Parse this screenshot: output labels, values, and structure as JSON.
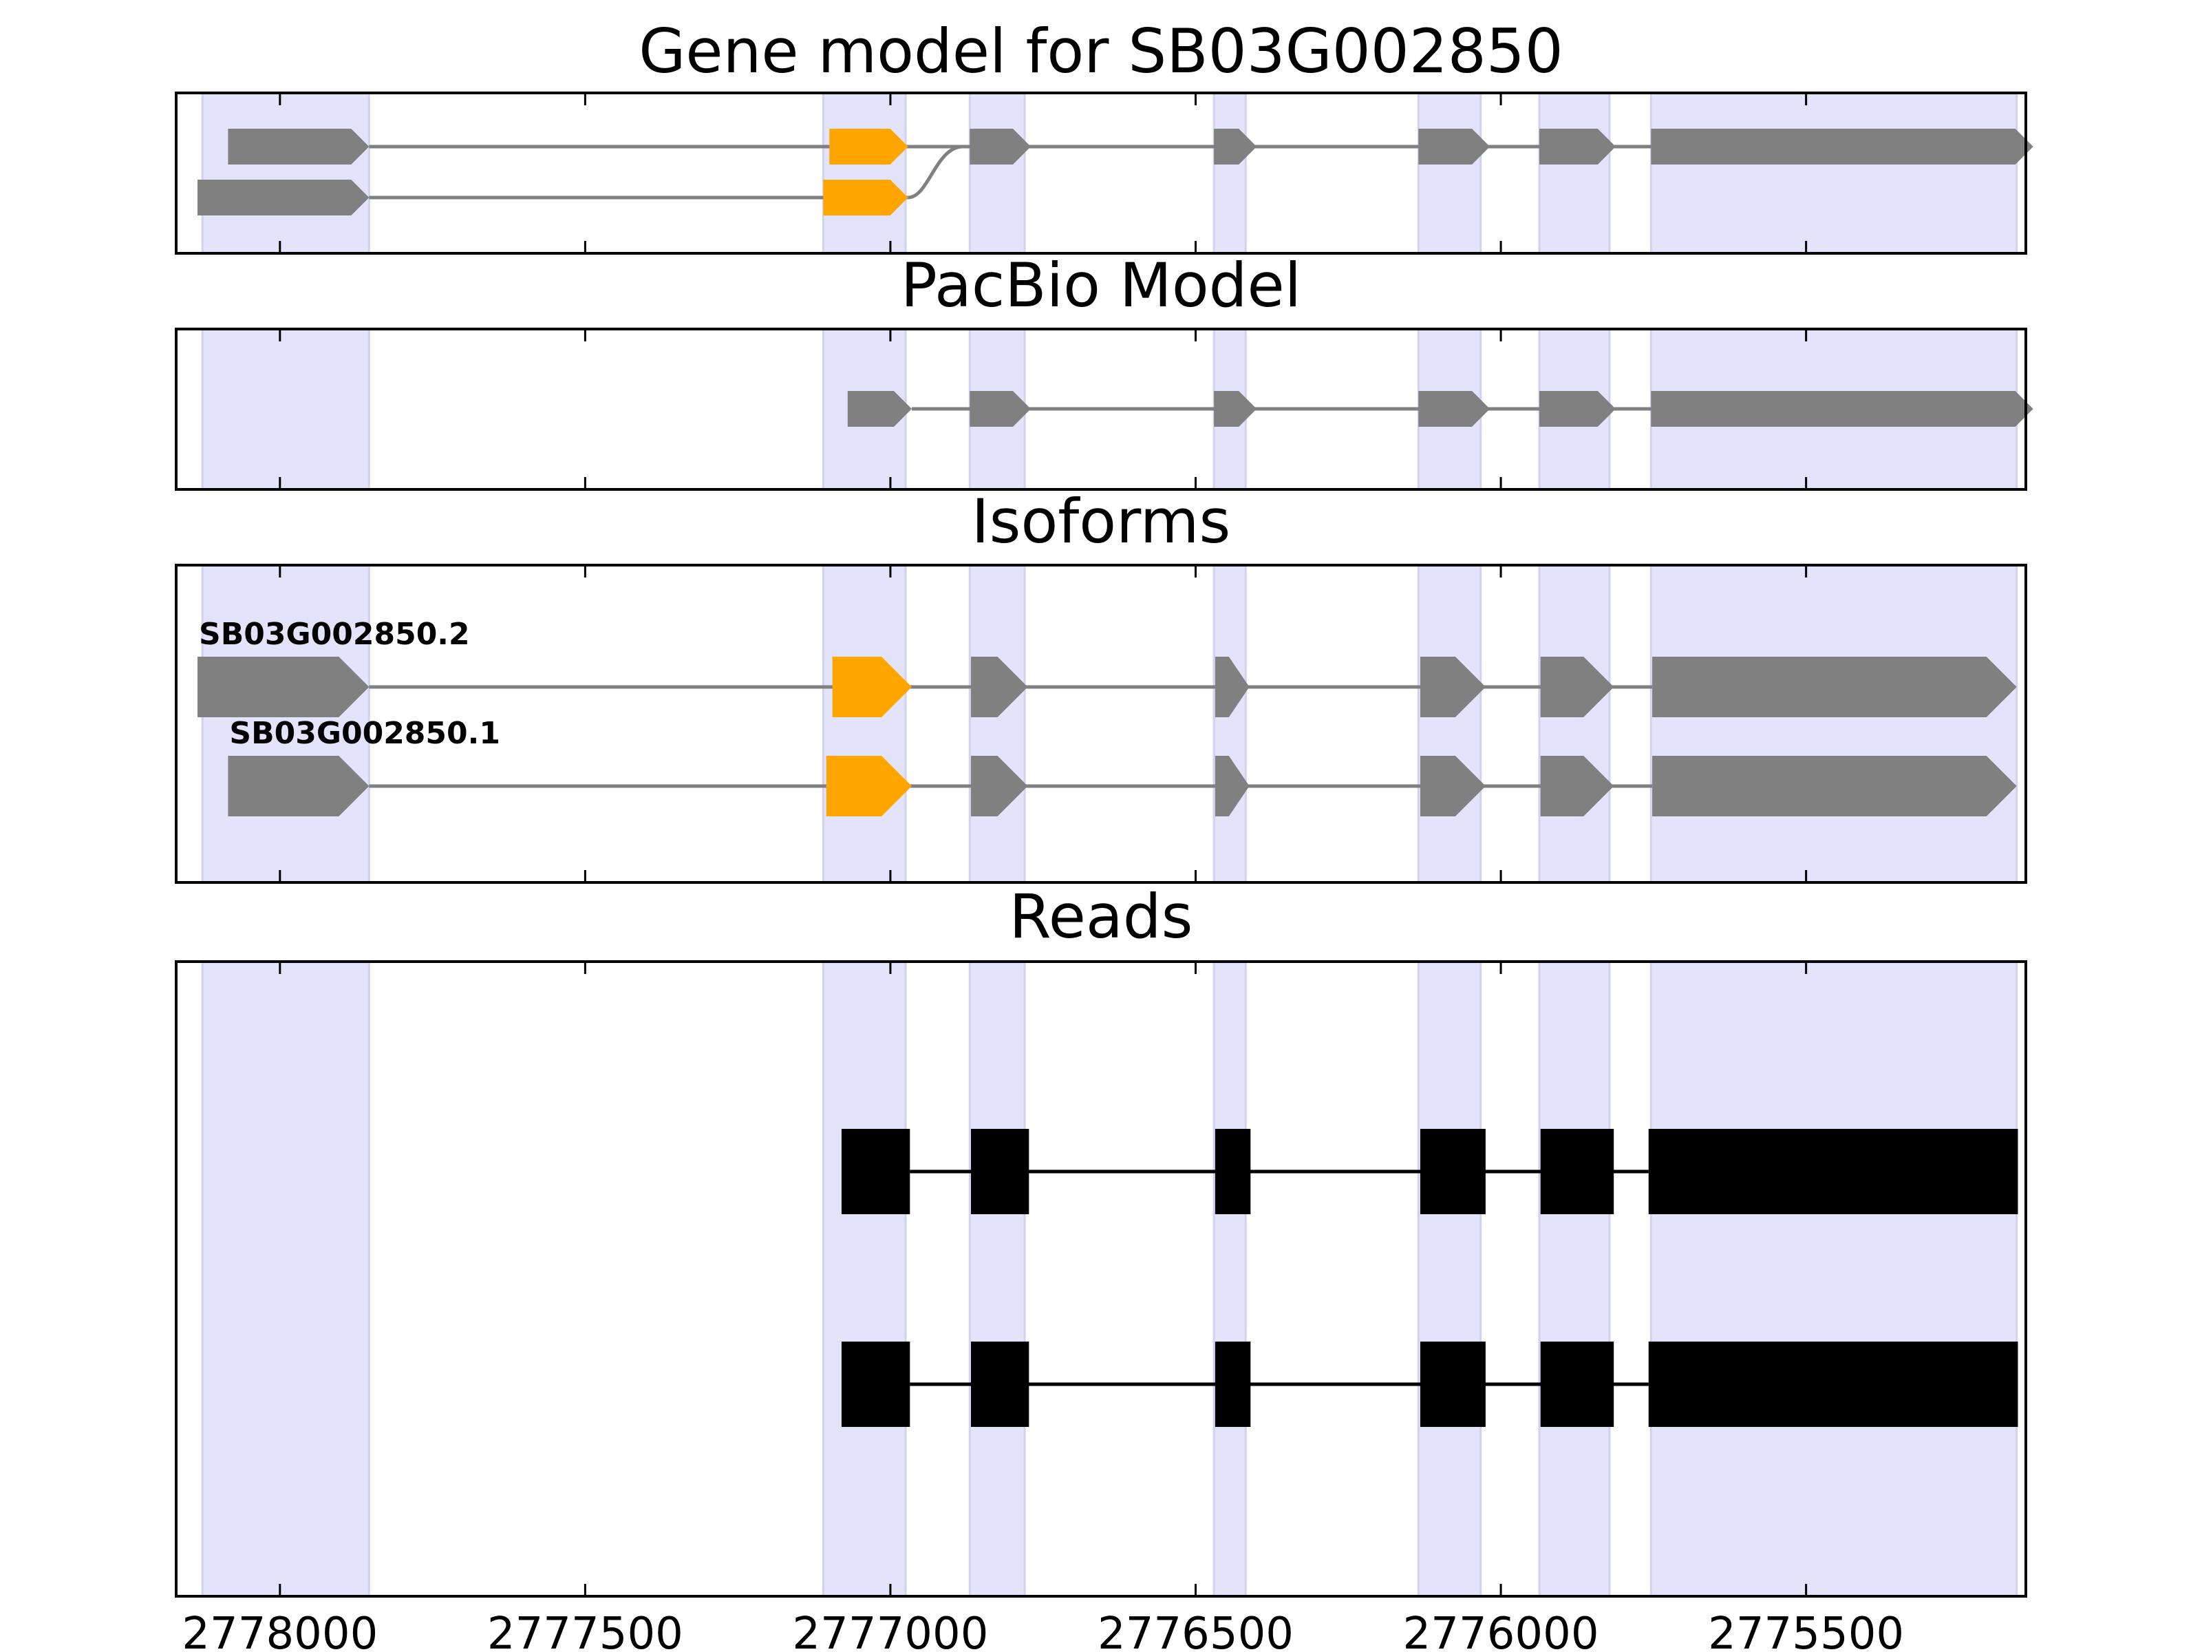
{
  "chart_data": {
    "type": "gene-track",
    "x_axis": {
      "reversed": true,
      "xlim": [
        2778170,
        2775140
      ],
      "ticks": [
        2778000,
        2777500,
        2777000,
        2776500,
        2776000,
        2775500
      ],
      "tick_labels": [
        "2778000",
        "2777500",
        "2777000",
        "2776500",
        "2776000",
        "2775500"
      ]
    },
    "exon_highlights": [
      [
        2778127,
        2777854
      ],
      [
        2777110,
        2776975
      ],
      [
        2776870,
        2776780
      ],
      [
        2776470,
        2776418
      ],
      [
        2776135,
        2776033
      ],
      [
        2775937,
        2775822
      ],
      [
        2775754,
        2775155
      ]
    ],
    "colors": {
      "highlight": "#e3e3fb",
      "highlight_edge": "#d2d2ee",
      "exon": "#808080",
      "cds_start_exon": "#ffa500",
      "intron": "#808080",
      "read": "#000000"
    },
    "panels": [
      {
        "title": "Gene model for SB03G002850",
        "rows": [
          {
            "exons": [
              [
                2778085,
                2777854
              ],
              [
                2777100,
                2776971
              ],
              [
                2776870,
                2776770
              ],
              [
                2776470,
                2776400
              ],
              [
                2776135,
                2776018
              ],
              [
                2775937,
                2775812
              ],
              [
                2775754,
                2775128
              ]
            ],
            "highlight_exon": 1
          },
          {
            "exons": [
              [
                2778135,
                2777854
              ],
              [
                2777110,
                2776971
              ]
            ],
            "highlight_exon": 1
          }
        ]
      },
      {
        "title": "PacBio Model",
        "rows": [
          {
            "exons": [
              [
                2777070,
                2776965
              ],
              [
                2776870,
                2776770
              ],
              [
                2776470,
                2776400
              ],
              [
                2776135,
                2776018
              ],
              [
                2775937,
                2775812
              ],
              [
                2775754,
                2775128
              ]
            ],
            "highlight_exon": -1
          }
        ]
      },
      {
        "title": "Isoforms",
        "rows": [
          {
            "label": "SB03G002850.2",
            "exons": [
              [
                2778135,
                2777854
              ],
              [
                2777095,
                2776965
              ],
              [
                2776868,
                2776775
              ],
              [
                2776468,
                2776412
              ],
              [
                2776132,
                2776025
              ],
              [
                2775935,
                2775815
              ],
              [
                2775752,
                2775155
              ]
            ],
            "highlight_exon": 1
          },
          {
            "label": "SB03G002850.1",
            "exons": [
              [
                2778085,
                2777854
              ],
              [
                2777105,
                2776965
              ],
              [
                2776868,
                2776775
              ],
              [
                2776468,
                2776412
              ],
              [
                2776132,
                2776025
              ],
              [
                2775935,
                2775815
              ],
              [
                2775752,
                2775155
              ]
            ],
            "highlight_exon": 1
          }
        ]
      },
      {
        "title": "Reads",
        "rows": [
          {
            "exons": [
              [
                2777080,
                2776968
              ],
              [
                2776868,
                2776773
              ],
              [
                2776468,
                2776410
              ],
              [
                2776132,
                2776025
              ],
              [
                2775935,
                2775815
              ],
              [
                2775758,
                2775153
              ]
            ],
            "highlight_exon": -1
          },
          {
            "exons": [
              [
                2777080,
                2776968
              ],
              [
                2776868,
                2776773
              ],
              [
                2776468,
                2776410
              ],
              [
                2776132,
                2776025
              ],
              [
                2775935,
                2775815
              ],
              [
                2775758,
                2775153
              ]
            ],
            "highlight_exon": -1
          }
        ]
      }
    ]
  }
}
